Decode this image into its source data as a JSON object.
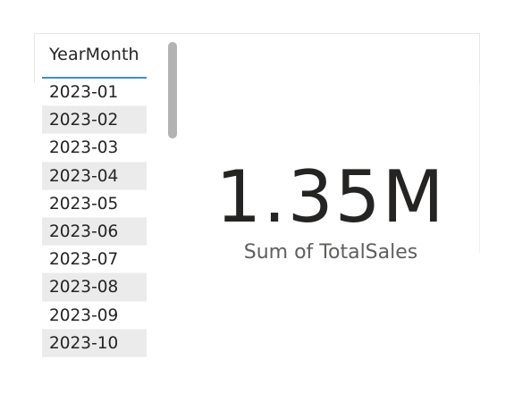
{
  "slicer": {
    "header": "YearMonth",
    "items": [
      "2023-01",
      "2023-02",
      "2023-03",
      "2023-04",
      "2023-05",
      "2023-06",
      "2023-07",
      "2023-08",
      "2023-09",
      "2023-10"
    ]
  },
  "card": {
    "value": "1.35M",
    "label": "Sum of TotalSales"
  },
  "colors": {
    "header_underline": "#3a90c7",
    "alt_row": "#ebebeb",
    "scrollbar": "#b3b3b3",
    "text": "#252423",
    "label_text": "#605e5c"
  }
}
